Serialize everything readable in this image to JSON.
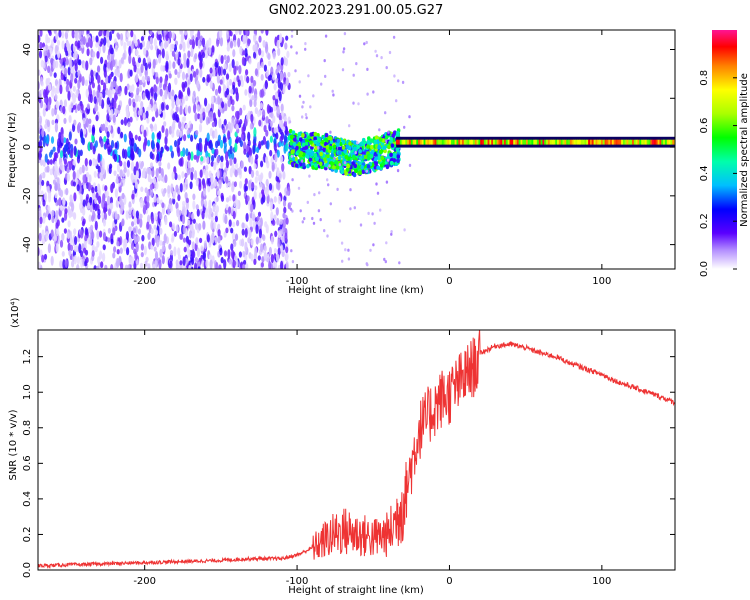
{
  "title": "GN02.2023.291.00.05.G27",
  "chart_data": [
    {
      "type": "heatmap",
      "xlabel": "Height of straight line (km)",
      "ylabel": "Frequency (Hz)",
      "xlim": [
        -270,
        148
      ],
      "ylim": [
        -50,
        48
      ],
      "x_ticks": [
        -200,
        -100,
        0,
        100
      ],
      "y_ticks": [
        -40,
        -20,
        0,
        20,
        40
      ],
      "colorbar": {
        "label": "Normalized spectral amplitude",
        "range": [
          0,
          1
        ],
        "ticks": [
          0.0,
          0.2,
          0.4,
          0.6,
          0.8
        ]
      },
      "regions": [
        {
          "x_range": [
            -270,
            -105
          ],
          "freq_center": 0,
          "freq_spread": 50,
          "amplitude": 0.15
        },
        {
          "x_range": [
            -105,
            -35
          ],
          "freq_center": -4,
          "freq_spread": 8,
          "amplitude": 0.4
        },
        {
          "x_range": [
            -35,
            148
          ],
          "freq_center": 2,
          "freq_spread": 1.5,
          "amplitude": 0.85
        }
      ],
      "center_track": [
        [
          -270,
          0
        ],
        [
          -200,
          0
        ],
        [
          -150,
          0
        ],
        [
          -120,
          2
        ],
        [
          -100,
          -1
        ],
        [
          -80,
          -2
        ],
        [
          -65,
          -5
        ],
        [
          -50,
          -3
        ],
        [
          -40,
          -1
        ],
        [
          -30,
          1
        ],
        [
          -10,
          2
        ],
        [
          0,
          2
        ],
        [
          50,
          2
        ],
        [
          100,
          2
        ],
        [
          148,
          2
        ]
      ]
    },
    {
      "type": "line",
      "xlabel": "Height of straight line (km)",
      "ylabel": "SNR (10 * v/v)",
      "y_scale_label": "(x10⁴)",
      "xlim": [
        -270,
        148
      ],
      "ylim": [
        0,
        1.35
      ],
      "x_ticks": [
        -200,
        -100,
        0,
        100
      ],
      "y_ticks": [
        0.0,
        0.2,
        0.4,
        0.6,
        0.8,
        1.0,
        1.2
      ],
      "y_tick_labels": [
        "0.0",
        "0.2",
        "0.4",
        "0.6",
        "0.8",
        "1.0",
        "1.2"
      ],
      "series": [
        {
          "color": "#ee3333",
          "x": [
            -270,
            -250,
            -230,
            -210,
            -190,
            -170,
            -150,
            -130,
            -110,
            -100,
            -90,
            -80,
            -70,
            -60,
            -50,
            -40,
            -35,
            -30,
            -25,
            -20,
            -15,
            -10,
            -5,
            0,
            10,
            20,
            30,
            40,
            50,
            60,
            70,
            80,
            90,
            100,
            110,
            120,
            130,
            140,
            148
          ],
          "y": [
            0.02,
            0.025,
            0.03,
            0.035,
            0.04,
            0.045,
            0.05,
            0.06,
            0.06,
            0.08,
            0.12,
            0.18,
            0.22,
            0.2,
            0.18,
            0.2,
            0.28,
            0.42,
            0.62,
            0.82,
            0.88,
            0.95,
            1.0,
            1.02,
            1.12,
            1.22,
            1.26,
            1.27,
            1.25,
            1.22,
            1.2,
            1.16,
            1.13,
            1.1,
            1.06,
            1.03,
            1.0,
            0.97,
            0.94
          ]
        }
      ]
    }
  ]
}
